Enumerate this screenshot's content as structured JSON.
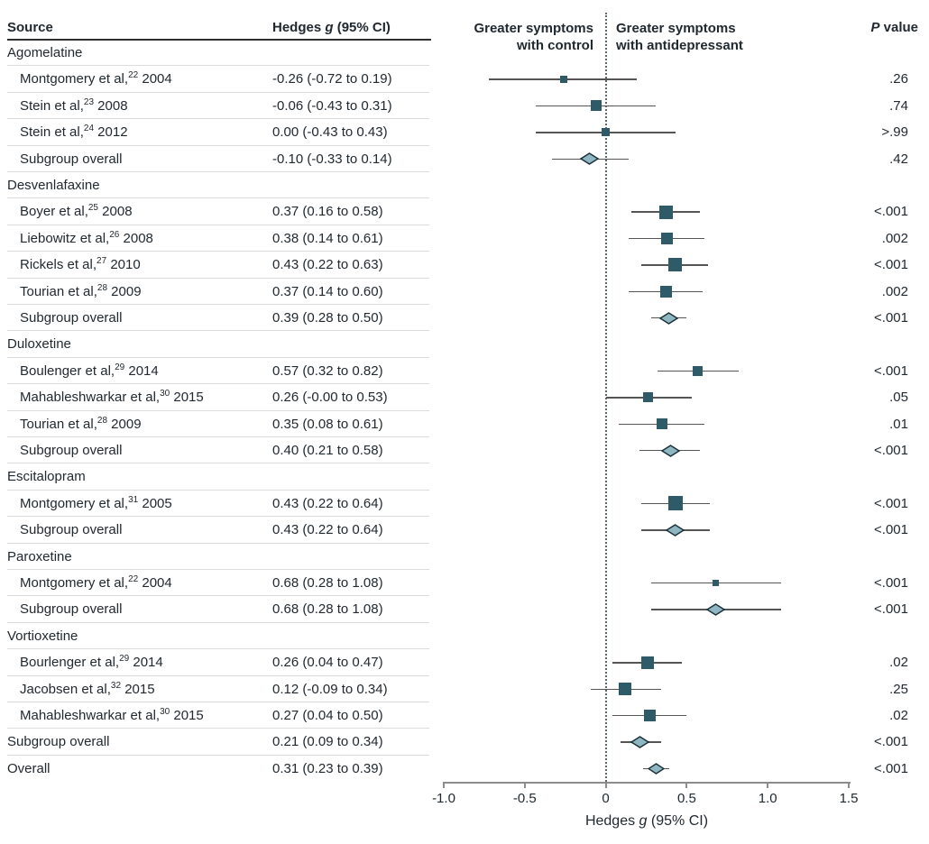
{
  "colors": {
    "square_marker": "#2f5a68",
    "diamond_fill": "#8fb6c3",
    "diamond_stroke": "#1c3038",
    "whisker": "#555555",
    "axis": "#8c8c8c",
    "row_separator": "#dcdcdc",
    "header_rule": "#2f2f2f",
    "text": "#212930"
  },
  "header": {
    "source": "Source",
    "hedges_pre": "Hedges ",
    "hedges_italic": "g",
    "hedges_post": " (95% CI)",
    "left_region_lines": [
      "Greater symptoms",
      "with control"
    ],
    "right_region_lines": [
      "Greater symptoms",
      "with antidepressant"
    ],
    "p_italic": "P",
    "p_post": " value"
  },
  "chart_data": {
    "type": "forest",
    "xlabel_pre": "Hedges ",
    "xlabel_italic": "g",
    "xlabel_post": " (95% CI)",
    "xlim": [
      -1.0,
      1.5
    ],
    "zero_reference": 0,
    "grid": false,
    "x_ticks": [
      {
        "v": -1.0,
        "label": "-1.0"
      },
      {
        "v": -0.5,
        "label": "-0.5"
      },
      {
        "v": 0,
        "label": "0"
      },
      {
        "v": 0.5,
        "label": "0.5"
      },
      {
        "v": 1.0,
        "label": "1.0"
      },
      {
        "v": 1.5,
        "label": "1.5"
      }
    ],
    "rows": [
      {
        "kind": "group",
        "label": "Agomelatine"
      },
      {
        "kind": "study",
        "indent": true,
        "label": "Montgomery et al,",
        "sup": "22",
        "suffix": " 2004",
        "ci": "-0.26 (-0.72 to 0.19)",
        "est": -0.26,
        "lo": -0.72,
        "hi": 0.19,
        "p": ".26",
        "marker": "square",
        "size": 8
      },
      {
        "kind": "study",
        "indent": true,
        "label": "Stein et al,",
        "sup": "23",
        "suffix": " 2008",
        "ci": "-0.06 (-0.43 to 0.31)",
        "est": -0.06,
        "lo": -0.43,
        "hi": 0.31,
        "p": ".74",
        "marker": "square",
        "size": 12
      },
      {
        "kind": "study",
        "indent": true,
        "label": "Stein et al,",
        "sup": "24",
        "suffix": " 2012",
        "ci": "0.00 (-0.43 to 0.43)",
        "est": 0.0,
        "lo": -0.43,
        "hi": 0.43,
        "p": ">.99",
        "marker": "square",
        "size": 9
      },
      {
        "kind": "subgroup",
        "indent": true,
        "label": "Subgroup overall",
        "ci": "-0.10 (-0.33 to 0.14)",
        "est": -0.1,
        "lo": -0.33,
        "hi": 0.14,
        "p": ".42",
        "marker": "diamond"
      },
      {
        "kind": "group",
        "label": "Desvenlafaxine"
      },
      {
        "kind": "study",
        "indent": true,
        "label": "Boyer et al,",
        "sup": "25",
        "suffix": " 2008",
        "ci": "0.37 (0.16 to 0.58)",
        "est": 0.37,
        "lo": 0.16,
        "hi": 0.58,
        "p": "<.001",
        "marker": "square",
        "size": 15
      },
      {
        "kind": "study",
        "indent": true,
        "label": "Liebowitz et al,",
        "sup": "26",
        "suffix": " 2008",
        "ci": "0.38 (0.14 to 0.61)",
        "est": 0.38,
        "lo": 0.14,
        "hi": 0.61,
        "p": ".002",
        "marker": "square",
        "size": 13
      },
      {
        "kind": "study",
        "indent": true,
        "label": "Rickels et al,",
        "sup": "27",
        "suffix": " 2010",
        "ci": "0.43 (0.22 to 0.63)",
        "est": 0.43,
        "lo": 0.22,
        "hi": 0.63,
        "p": "<.001",
        "marker": "square",
        "size": 15
      },
      {
        "kind": "study",
        "indent": true,
        "label": "Tourian et al,",
        "sup": "28",
        "suffix": " 2009",
        "ci": "0.37 (0.14 to 0.60)",
        "est": 0.37,
        "lo": 0.14,
        "hi": 0.6,
        "p": ".002",
        "marker": "square",
        "size": 13
      },
      {
        "kind": "subgroup",
        "indent": true,
        "label": "Subgroup overall",
        "ci": "0.39 (0.28 to 0.50)",
        "est": 0.39,
        "lo": 0.28,
        "hi": 0.5,
        "p": "<.001",
        "marker": "diamond"
      },
      {
        "kind": "group",
        "label": "Duloxetine"
      },
      {
        "kind": "study",
        "indent": true,
        "label": "Boulenger et al,",
        "sup": "29",
        "suffix": " 2014",
        "ci": "0.57 (0.32 to 0.82)",
        "est": 0.57,
        "lo": 0.32,
        "hi": 0.82,
        "p": "<.001",
        "marker": "square",
        "size": 11
      },
      {
        "kind": "study",
        "indent": true,
        "label": "Mahableshwarkar et al,",
        "sup": "30",
        "suffix": " 2015",
        "ci": "0.26 (-0.00 to 0.53)",
        "est": 0.26,
        "lo": -0.0,
        "hi": 0.53,
        "p": ".05",
        "marker": "square",
        "size": 11
      },
      {
        "kind": "study",
        "indent": true,
        "label": "Tourian et al,",
        "sup": "28",
        "suffix": " 2009",
        "ci": "0.35 (0.08 to 0.61)",
        "est": 0.35,
        "lo": 0.08,
        "hi": 0.61,
        "p": ".01",
        "marker": "square",
        "size": 12
      },
      {
        "kind": "subgroup",
        "indent": true,
        "label": "Subgroup overall",
        "ci": "0.40 (0.21 to 0.58)",
        "est": 0.4,
        "lo": 0.21,
        "hi": 0.58,
        "p": "<.001",
        "marker": "diamond"
      },
      {
        "kind": "group",
        "label": "Escitalopram"
      },
      {
        "kind": "study",
        "indent": true,
        "label": "Montgomery et al,",
        "sup": "31",
        "suffix": " 2005",
        "ci": "0.43 (0.22 to 0.64)",
        "est": 0.43,
        "lo": 0.22,
        "hi": 0.64,
        "p": "<.001",
        "marker": "square",
        "size": 16
      },
      {
        "kind": "subgroup",
        "indent": true,
        "label": "Subgroup overall",
        "ci": "0.43 (0.22 to 0.64)",
        "est": 0.43,
        "lo": 0.22,
        "hi": 0.64,
        "p": "<.001",
        "marker": "diamond"
      },
      {
        "kind": "group",
        "label": "Paroxetine"
      },
      {
        "kind": "study",
        "indent": true,
        "label": "Montgomery et al,",
        "sup": "22",
        "suffix": " 2004",
        "ci": "0.68 (0.28 to 1.08)",
        "est": 0.68,
        "lo": 0.28,
        "hi": 1.08,
        "p": "<.001",
        "marker": "square",
        "size": 7
      },
      {
        "kind": "subgroup",
        "indent": true,
        "label": "Subgroup overall",
        "ci": "0.68 (0.28 to 1.08)",
        "est": 0.68,
        "lo": 0.28,
        "hi": 1.08,
        "p": "<.001",
        "marker": "diamond"
      },
      {
        "kind": "group",
        "label": "Vortioxetine"
      },
      {
        "kind": "study",
        "indent": true,
        "label": "Bourlenger et al,",
        "sup": "29",
        "suffix": " 2014",
        "ci": "0.26 (0.04 to 0.47)",
        "est": 0.26,
        "lo": 0.04,
        "hi": 0.47,
        "p": ".02",
        "marker": "square",
        "size": 14
      },
      {
        "kind": "study",
        "indent": true,
        "label": "Jacobsen et al,",
        "sup": "32",
        "suffix": " 2015",
        "ci": "0.12 (-0.09 to 0.34)",
        "est": 0.12,
        "lo": -0.09,
        "hi": 0.34,
        "p": ".25",
        "marker": "square",
        "size": 14
      },
      {
        "kind": "study",
        "indent": true,
        "label": "Mahableshwarkar et al,",
        "sup": "30",
        "suffix": " 2015",
        "ci": "0.27 (0.04 to 0.50)",
        "est": 0.27,
        "lo": 0.04,
        "hi": 0.5,
        "p": ".02",
        "marker": "square",
        "size": 13
      },
      {
        "kind": "subgroup",
        "indent": false,
        "label": "Subgroup overall",
        "ci": "0.21 (0.09 to 0.34)",
        "est": 0.21,
        "lo": 0.09,
        "hi": 0.34,
        "p": "<.001",
        "marker": "diamond"
      },
      {
        "kind": "overall",
        "indent": false,
        "label": "Overall",
        "ci": "0.31 (0.23 to 0.39)",
        "est": 0.31,
        "lo": 0.23,
        "hi": 0.39,
        "p": "<.001",
        "marker": "diamond"
      }
    ]
  }
}
